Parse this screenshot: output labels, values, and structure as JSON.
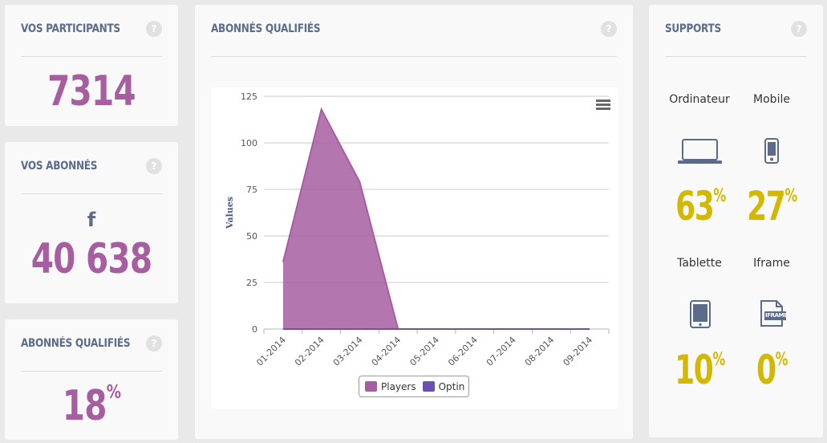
{
  "participants": {
    "title": "VOS PARTICIPANTS",
    "help": "?",
    "value": "7314"
  },
  "abonnes": {
    "title": "VOS ABONNÉS",
    "help": "?",
    "icon": "facebook-icon",
    "icon_glyph": "f",
    "value": "40 638"
  },
  "qualifies_left": {
    "title": "ABONNÉS QUALIFIÉS",
    "help": "?",
    "value": "18",
    "unit": "%"
  },
  "chart_panel": {
    "title": "ABONNÉS QUALIFIÉS",
    "help": "?"
  },
  "chart_data": {
    "type": "area",
    "x": [
      "01-2014",
      "02-2014",
      "03-2014",
      "04-2014",
      "05-2014",
      "06-2014",
      "07-2014",
      "08-2014",
      "09-2014"
    ],
    "series": [
      {
        "name": "Players",
        "values": [
          36,
          118,
          79,
          0,
          0,
          0,
          0,
          0,
          0
        ],
        "color": "#a65ea0"
      },
      {
        "name": "Optin",
        "values": [
          0,
          0,
          0,
          0,
          0,
          0,
          0,
          0,
          0
        ],
        "color": "#6a4fb5"
      }
    ],
    "ylabel": "Values",
    "yticks": [
      0,
      25,
      50,
      75,
      100,
      125
    ],
    "ylim": [
      0,
      125
    ],
    "grid": true,
    "legend": "bottom-center"
  },
  "supports": {
    "title": "SUPPORTS",
    "help": "?",
    "items": [
      {
        "label": "Ordinateur",
        "icon": "laptop-icon",
        "value": "63",
        "unit": "%"
      },
      {
        "label": "Mobile",
        "icon": "mobile-icon",
        "value": "27",
        "unit": "%"
      },
      {
        "label": "Tablette",
        "icon": "tablet-icon",
        "value": "10",
        "unit": "%"
      },
      {
        "label": "Iframe",
        "icon": "iframe-icon",
        "icon_text": "IFRAME",
        "value": "0",
        "unit": "%"
      }
    ]
  },
  "colors": {
    "accent": "#a65ea0",
    "support_pct": "#d4b800",
    "title": "#5b6b8c"
  }
}
